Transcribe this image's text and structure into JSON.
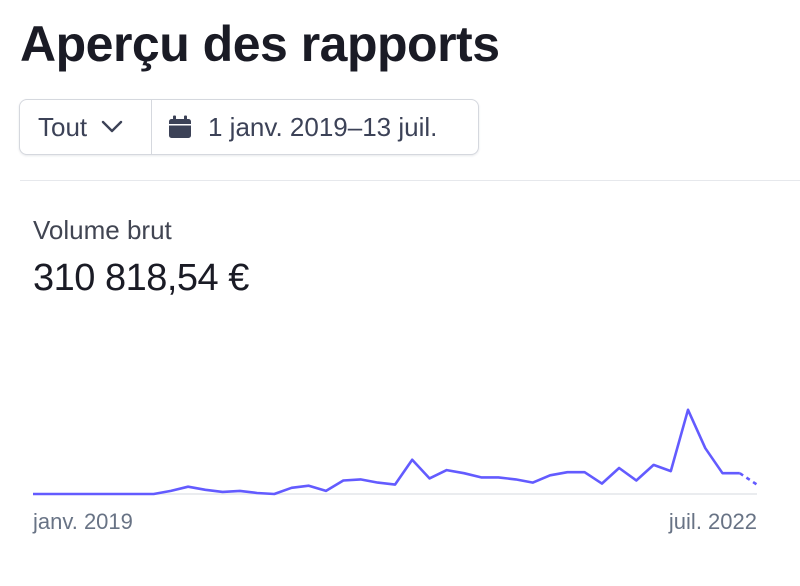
{
  "header": {
    "title": "Aperçu des rapports"
  },
  "filters": {
    "scope_value": "Tout",
    "date_range_label": "1 janv. 2019–13 juil."
  },
  "metric": {
    "label": "Volume brut",
    "value": "310 818,54 €"
  },
  "colors": {
    "accent": "#635bff",
    "text": "#1a1b25",
    "muted": "#687385",
    "border": "#d5d8de"
  },
  "icons": {
    "dropdown": "chevron-down-icon",
    "date": "calendar-icon"
  },
  "chart_data": {
    "type": "line",
    "title": "",
    "xlabel": "",
    "ylabel": "",
    "x_tick_labels": [
      "janv. 2019",
      "juil. 2022"
    ],
    "x_start": "2019-01",
    "x_end": "2022-07",
    "y_range": [
      0,
      125
    ],
    "grid": false,
    "legend": "none",
    "series": [
      {
        "values": [
          0,
          0,
          0,
          0,
          0,
          0,
          0,
          0,
          3,
          7,
          4,
          2,
          3,
          1,
          0,
          6,
          8,
          3,
          13,
          14,
          11,
          9,
          33,
          15,
          23,
          20,
          16,
          16,
          14,
          11,
          18,
          21,
          21,
          10,
          25,
          13,
          28,
          22,
          81,
          44,
          20,
          20
        ],
        "last_segment_dashed": true,
        "final_value": 9,
        "color": "#635bff"
      }
    ]
  }
}
